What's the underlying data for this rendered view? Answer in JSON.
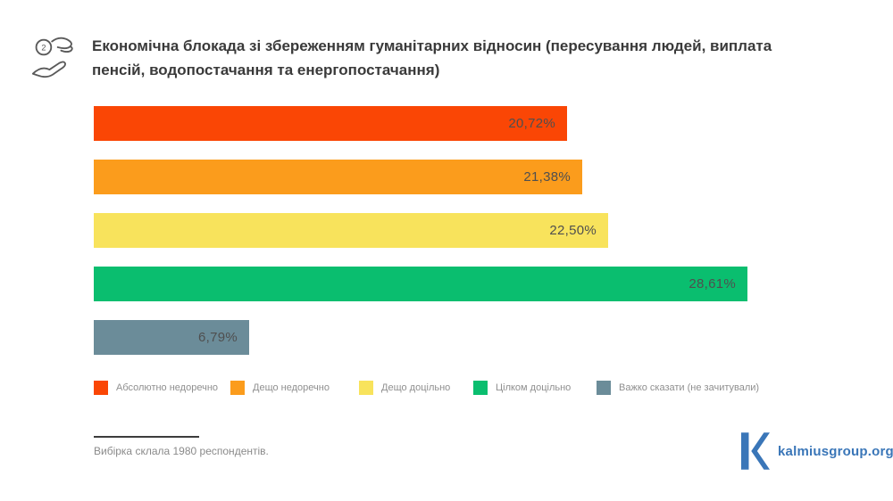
{
  "header": {
    "title": "Економічна блокада зі збереженням гуманітарних відносин (пересування людей, виплата пенсій, водопостачання та енергопостачання)",
    "icon": "hand-coin-icon"
  },
  "chart_data": {
    "type": "bar",
    "orientation": "horizontal",
    "title": "Економічна блокада зі збереженням гуманітарних відносин (пересування людей, виплата пенсій, водопостачання та енергопостачання)",
    "categories": [
      "Абсолютно недоречно",
      "Дещо недоречно",
      "Дещо доцільно",
      "Цілком доцільно",
      "Важко сказати (не зачитували)"
    ],
    "values": [
      20.72,
      21.38,
      22.5,
      28.61,
      6.79
    ],
    "value_labels": [
      "20,72%",
      "21,38%",
      "22,50%",
      "28,61%",
      "6,79%"
    ],
    "colors": [
      "#FA4605",
      "#FB9C1C",
      "#F8E35C",
      "#0ABE6F",
      "#6B8C99"
    ],
    "xlim": [
      0,
      30
    ],
    "grid": false,
    "legend_position": "bottom",
    "value_label_position": "inside-end"
  },
  "footer": {
    "note": "Вибірка склала 1980 респондентів.",
    "logo_text": "kalmiusgroup.org",
    "logo_color": "#3A76B8"
  }
}
